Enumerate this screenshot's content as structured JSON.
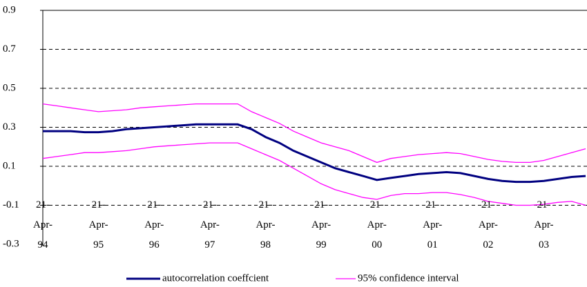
{
  "chart_data": {
    "type": "line",
    "categories": [
      "21-Apr-94",
      null,
      null,
      null,
      "21-Apr-95",
      null,
      null,
      null,
      "21-Apr-96",
      null,
      null,
      null,
      "21-Apr-97",
      null,
      null,
      null,
      "21-Apr-98",
      null,
      null,
      null,
      "21-Apr-99",
      null,
      null,
      null,
      "21-Apr-00",
      null,
      null,
      null,
      "21-Apr-01",
      null,
      null,
      null,
      "21-Apr-02",
      null,
      null,
      null,
      "21-Apr-03",
      null,
      null,
      null
    ],
    "series": [
      {
        "name": "autocorrelation coeffcient",
        "color": "#000080",
        "values": [
          0.28,
          0.28,
          0.28,
          0.275,
          0.275,
          0.28,
          0.29,
          0.295,
          0.3,
          0.305,
          0.31,
          0.315,
          0.315,
          0.315,
          0.315,
          0.29,
          0.25,
          0.22,
          0.18,
          0.15,
          0.12,
          0.09,
          0.07,
          0.05,
          0.03,
          0.04,
          0.05,
          0.06,
          0.065,
          0.07,
          0.065,
          0.05,
          0.035,
          0.025,
          0.02,
          0.02,
          0.025,
          0.035,
          0.045,
          0.05
        ]
      },
      {
        "name": "95% confidence interval",
        "color": "#ff00ff",
        "upper": [
          0.42,
          0.41,
          0.4,
          0.39,
          0.38,
          0.385,
          0.39,
          0.4,
          0.405,
          0.41,
          0.415,
          0.42,
          0.42,
          0.42,
          0.42,
          0.38,
          0.35,
          0.32,
          0.28,
          0.25,
          0.22,
          0.2,
          0.18,
          0.15,
          0.12,
          0.14,
          0.15,
          0.16,
          0.165,
          0.17,
          0.165,
          0.15,
          0.135,
          0.125,
          0.12,
          0.12,
          0.13,
          0.15,
          0.17,
          0.19
        ],
        "lower": [
          0.14,
          0.15,
          0.16,
          0.17,
          0.17,
          0.175,
          0.18,
          0.19,
          0.2,
          0.205,
          0.21,
          0.215,
          0.22,
          0.22,
          0.22,
          0.19,
          0.16,
          0.13,
          0.09,
          0.05,
          0.01,
          -0.02,
          -0.04,
          -0.06,
          -0.07,
          -0.05,
          -0.04,
          -0.04,
          -0.035,
          -0.035,
          -0.045,
          -0.06,
          -0.08,
          -0.09,
          -0.1,
          -0.1,
          -0.095,
          -0.085,
          -0.08,
          -0.1
        ]
      }
    ],
    "ylim": [
      -0.3,
      0.9
    ],
    "yticks": [
      0.9,
      0.7,
      0.5,
      0.3,
      0.1,
      -0.1,
      -0.3
    ],
    "grid": true
  }
}
